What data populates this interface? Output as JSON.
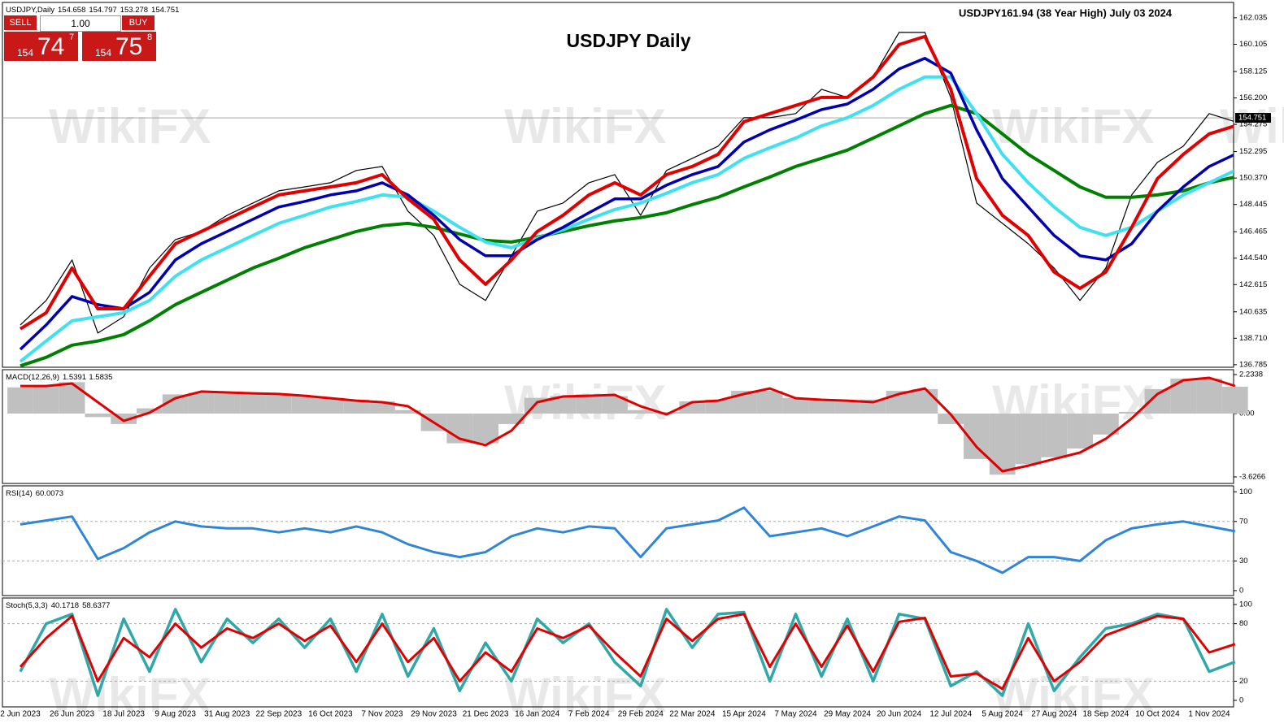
{
  "watermark": "WikiFX",
  "trade_panel": {
    "sell": "SELL",
    "buy": "BUY",
    "lots": "1.00",
    "bid": {
      "big": "154",
      "main": "74",
      "pip": "7"
    },
    "ask": {
      "big": "154",
      "main": "75",
      "pip": "8"
    }
  },
  "chart_data": [
    {
      "type": "line",
      "title": "USDJPY,Daily",
      "readout": [
        154.658,
        154.797,
        153.278,
        154.751
      ],
      "heading": "USDJPY Daily",
      "annotation": "USDJPY161.94  (38 Year High) July 03 2024",
      "current_price": 154.751,
      "ylim": [
        136.6,
        163.15
      ],
      "yticks": [
        {
          "value": 136.785,
          "label": "136.785"
        },
        {
          "value": 138.71,
          "label": "138.710"
        },
        {
          "value": 140.635,
          "label": "140.635"
        },
        {
          "value": 142.615,
          "label": "142.615"
        },
        {
          "value": 144.54,
          "label": "144.540"
        },
        {
          "value": 146.465,
          "label": "146.465"
        },
        {
          "value": 148.445,
          "label": "148.445"
        },
        {
          "value": 150.37,
          "label": "150.370"
        },
        {
          "value": 152.295,
          "label": "152.295"
        },
        {
          "value": 154.275,
          "label": "154.275"
        },
        {
          "value": 156.2,
          "label": "156.200"
        },
        {
          "value": 158.125,
          "label": "158.125"
        },
        {
          "value": 160.105,
          "label": "160.105"
        },
        {
          "value": 162.035,
          "label": "162.035"
        }
      ],
      "series": [
        {
          "type": "line",
          "color": "#000000",
          "width": 1.2,
          "values": [
            139.68,
            141.46,
            144.41,
            139.09,
            140.27,
            143.82,
            145.89,
            146.48,
            147.66,
            148.55,
            149.44,
            149.73,
            150.03,
            150.92,
            151.21,
            147.96,
            146.19,
            142.64,
            141.46,
            144.71,
            147.96,
            148.55,
            150.03,
            150.62,
            147.66,
            150.92,
            151.8,
            152.69,
            154.76,
            154.76,
            155.06,
            156.83,
            156.24,
            157.72,
            160.97,
            160.97,
            156.24,
            148.55,
            147.07,
            145.59,
            143.82,
            141.46,
            143.82,
            149.14,
            151.51,
            152.69,
            155.06,
            154.47
          ]
        },
        {
          "type": "line",
          "color": "#008000",
          "width": 4,
          "values": [
            136.7,
            137.32,
            138.21,
            138.51,
            138.98,
            139.98,
            141.16,
            142.05,
            142.94,
            143.82,
            144.53,
            145.3,
            145.89,
            146.48,
            146.9,
            147.07,
            146.78,
            146.3,
            145.83,
            145.71,
            146.07,
            146.48,
            146.9,
            147.25,
            147.49,
            147.84,
            148.44,
            148.97,
            149.73,
            150.44,
            151.21,
            151.8,
            152.4,
            153.28,
            154.17,
            155.06,
            155.65,
            155.06,
            153.58,
            152.1,
            150.92,
            149.73,
            148.97,
            148.97,
            149.14,
            149.44,
            150.03,
            150.44
          ]
        },
        {
          "type": "line",
          "color": "#40e0f0",
          "width": 4,
          "values": [
            137.02,
            138.51,
            139.98,
            140.27,
            140.57,
            141.46,
            143.23,
            144.41,
            145.3,
            146.19,
            147.07,
            147.66,
            148.26,
            148.67,
            149.14,
            148.97,
            147.96,
            146.78,
            145.71,
            145.3,
            146.01,
            146.6,
            147.37,
            148.08,
            148.55,
            149.26,
            150.03,
            150.62,
            151.8,
            152.57,
            153.28,
            154.17,
            154.76,
            155.65,
            156.83,
            157.72,
            157.72,
            155.06,
            152.1,
            150.03,
            148.26,
            146.78,
            146.19,
            146.78,
            147.96,
            149.14,
            150.03,
            150.92
          ]
        },
        {
          "type": "line",
          "color": "#0000b0",
          "width": 3.5,
          "values": [
            137.9,
            139.68,
            141.75,
            141.16,
            140.86,
            142.05,
            144.41,
            145.59,
            146.48,
            147.37,
            148.26,
            148.67,
            149.14,
            149.44,
            150.03,
            149.14,
            147.66,
            145.89,
            144.71,
            144.71,
            145.89,
            146.78,
            147.84,
            148.85,
            148.85,
            149.85,
            150.62,
            151.21,
            152.99,
            153.88,
            154.58,
            155.35,
            155.76,
            156.83,
            158.31,
            159.08,
            158.01,
            153.88,
            150.33,
            148.26,
            146.19,
            144.71,
            144.41,
            145.59,
            147.96,
            149.73,
            151.21,
            152.1
          ]
        },
        {
          "type": "line",
          "color": "#e00000",
          "width": 4,
          "values": [
            139.39,
            140.57,
            143.82,
            140.86,
            140.86,
            143.23,
            145.59,
            146.48,
            147.37,
            148.26,
            149.14,
            149.44,
            149.73,
            150.03,
            150.62,
            148.85,
            147.37,
            144.41,
            142.64,
            144.41,
            146.48,
            147.66,
            149.14,
            150.03,
            149.14,
            150.62,
            151.21,
            152.1,
            154.47,
            155.06,
            155.65,
            156.24,
            156.24,
            157.72,
            160.08,
            160.67,
            156.83,
            150.33,
            147.66,
            146.19,
            143.53,
            142.34,
            143.53,
            146.78,
            150.33,
            152.1,
            153.58,
            154.17
          ]
        }
      ]
    },
    {
      "type": "line",
      "title": "MACD(12,26,9)",
      "readout": [
        1.5391,
        1.5835
      ],
      "ylim": [
        -4.0,
        2.513
      ],
      "yticks": [
        2.2338,
        {
          "value": 0,
          "label": "0.00"
        },
        -3.6266
      ],
      "series": [
        {
          "type": "bar",
          "color": "#c0c0c0",
          "values": [
            1.5,
            1.6,
            1.8,
            -0.2,
            -0.6,
            0.3,
            1.1,
            1.2,
            1.2,
            1.2,
            1.1,
            1.0,
            0.9,
            0.8,
            0.7,
            0.2,
            -1.0,
            -1.7,
            -1.7,
            -0.6,
            0.9,
            1.0,
            1.1,
            1.0,
            0.2,
            0.1,
            0.7,
            0.8,
            1.3,
            1.3,
            0.9,
            0.8,
            0.7,
            0.8,
            1.3,
            1.4,
            -0.6,
            -2.6,
            -3.5,
            -2.9,
            -2.5,
            -2.0,
            -1.2,
            0.1,
            1.4,
            2.0,
            2.0,
            1.5391
          ]
        },
        {
          "type": "line",
          "color": "#e00000",
          "width": 3,
          "values": [
            1.58,
            1.58,
            1.72,
            0.65,
            -0.42,
            0.05,
            0.88,
            1.26,
            1.21,
            1.16,
            1.12,
            1.02,
            0.88,
            0.74,
            0.65,
            0.42,
            -0.51,
            -1.44,
            -1.81,
            -0.98,
            0.65,
            0.98,
            1.02,
            1.07,
            0.42,
            -0.05,
            0.65,
            0.74,
            1.12,
            1.44,
            0.88,
            0.79,
            0.74,
            0.65,
            1.12,
            1.44,
            -0.05,
            -1.91,
            -3.3,
            -2.98,
            -2.6,
            -2.23,
            -1.44,
            -0.28,
            1.12,
            1.91,
            2.05,
            1.5835
          ]
        }
      ]
    },
    {
      "type": "line",
      "title": "RSI(14)",
      "readout": [
        60.0073
      ],
      "ylim": [
        -5,
        106
      ],
      "yticks": [
        100,
        70,
        30,
        0
      ],
      "dashed_grid": [
        70,
        30
      ],
      "series": [
        {
          "type": "line",
          "color": "#2f86d8",
          "width": 3,
          "values": [
            67,
            71,
            75,
            32,
            43,
            59,
            70,
            65,
            63,
            63,
            59,
            63,
            59,
            65,
            59,
            47,
            39,
            34,
            39,
            55,
            63,
            59,
            65,
            63,
            34,
            63,
            67,
            71,
            84,
            55,
            59,
            63,
            55,
            65,
            75,
            71,
            39,
            30,
            18,
            34,
            34,
            30,
            51,
            63,
            67,
            70,
            65,
            60.0073
          ]
        }
      ]
    },
    {
      "type": "line",
      "title": "Stoch(5,3,3)",
      "readout": [
        40.1718,
        58.6377
      ],
      "ylim": [
        -6.8,
        106.8
      ],
      "yticks": [
        100,
        80,
        20,
        0
      ],
      "dashed_grid": [
        80,
        20
      ],
      "categories": [
        "2 Jun 2023",
        null,
        "26 Jun 2023",
        null,
        "18 Jul 2023",
        null,
        "9 Aug 2023",
        null,
        "31 Aug 2023",
        null,
        "22 Sep 2023",
        null,
        "16 Oct 2023",
        null,
        "7 Nov 2023",
        null,
        "29 Nov 2023",
        null,
        "21 Dec 2023",
        null,
        "16 Jan 2024",
        null,
        "7 Feb 2024",
        null,
        "29 Feb 2024",
        null,
        "22 Mar 2024",
        null,
        "15 Apr 2024",
        null,
        "7 May 2024",
        null,
        "29 May 2024",
        null,
        "20 Jun 2024",
        null,
        "12 Jul 2024",
        null,
        "5 Aug 2024",
        null,
        "27 Aug 2024",
        null,
        "18 Sep 2024",
        null,
        "10 Oct 2024",
        null,
        "1 Nov 2024",
        null
      ],
      "series": [
        {
          "type": "line",
          "color": "#30a8a8",
          "width": 3.5,
          "values": [
            30,
            80,
            90,
            5,
            85,
            30,
            95,
            40,
            85,
            60,
            85,
            55,
            85,
            30,
            90,
            25,
            75,
            10,
            60,
            20,
            85,
            60,
            80,
            40,
            15,
            95,
            55,
            90,
            92,
            20,
            90,
            25,
            85,
            20,
            90,
            85,
            15,
            30,
            5,
            80,
            10,
            45,
            75,
            80,
            90,
            85,
            30,
            40.1718
          ]
        },
        {
          "type": "line",
          "color": "#e00000",
          "width": 3,
          "values": [
            35,
            65,
            88,
            20,
            65,
            45,
            80,
            55,
            75,
            65,
            80,
            62,
            78,
            40,
            80,
            40,
            65,
            20,
            50,
            30,
            75,
            65,
            78,
            50,
            25,
            85,
            62,
            85,
            90,
            35,
            80,
            35,
            78,
            30,
            82,
            86,
            25,
            28,
            12,
            65,
            20,
            40,
            68,
            78,
            88,
            85,
            50,
            58.6377
          ]
        }
      ]
    }
  ]
}
